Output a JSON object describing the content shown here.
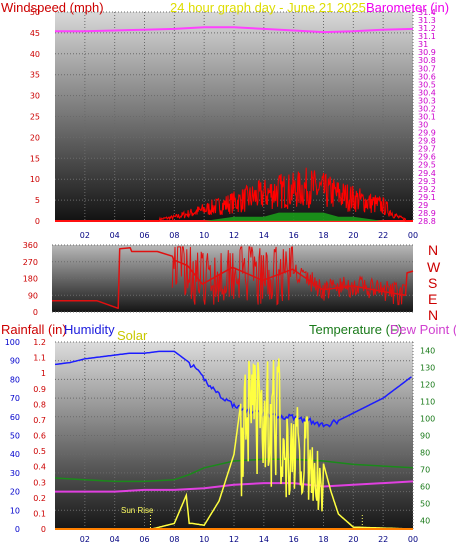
{
  "header": {
    "left_title": "Windspeed (mph)",
    "center_title": "24 hour graph day - June 21 2025",
    "right_title": "Barometer (in)"
  },
  "colors": {
    "wind": "#ff2020",
    "gust": "#ff0000",
    "barometer": "#ff40ff",
    "direction": "#e01010",
    "humidity": "#1c1cff",
    "solar": "#ffff40",
    "temperature": "#1a8a1a",
    "dewpoint": "#e040e0",
    "rain": "#ff8000",
    "bg_top": "#d8d8d8",
    "bg_bottom": "#1a1a1a"
  },
  "chart_data": [
    {
      "type": "line",
      "name": "wind-barometer",
      "x_ticks": [
        "02",
        "04",
        "06",
        "08",
        "10",
        "12",
        "14",
        "16",
        "18",
        "20",
        "22",
        "00"
      ],
      "left_axis": {
        "label": "Windspeed (mph)",
        "ticks": [
          "0",
          "5",
          "10",
          "15",
          "20",
          "25",
          "30",
          "35",
          "40",
          "45",
          "50"
        ],
        "range": [
          0,
          50
        ]
      },
      "right_axis": {
        "label": "Barometer (in)",
        "ticks": [
          "28.8",
          "28.9",
          "29",
          "29.1",
          "29.2",
          "29.3",
          "29.4",
          "29.5",
          "29.6",
          "29.7",
          "29.8",
          "29.9",
          "30",
          "30.1",
          "30.2",
          "30.3",
          "30.4",
          "30.5",
          "30.6",
          "30.7",
          "30.8",
          "30.9",
          "31",
          "31.1",
          "31.2",
          "31.3",
          "31.4"
        ],
        "range": [
          28.8,
          31.4
        ]
      },
      "series": [
        {
          "name": "Barometer",
          "x": [
            0,
            2,
            4,
            6,
            8,
            10,
            12,
            14,
            16,
            18,
            20,
            22,
            24
          ],
          "values": [
            31.16,
            31.16,
            31.17,
            31.18,
            31.19,
            31.21,
            31.21,
            31.19,
            31.17,
            31.15,
            31.16,
            31.18,
            31.19
          ]
        },
        {
          "name": "Wind gust",
          "x": [
            0,
            2,
            4,
            6,
            8,
            9,
            10,
            11,
            12,
            13,
            14,
            15,
            16,
            17,
            18,
            19,
            20,
            21,
            22,
            23,
            24
          ],
          "values": [
            0,
            0,
            0,
            0,
            1,
            2,
            3,
            4,
            5,
            6,
            7,
            8,
            8,
            9,
            8,
            7,
            6,
            5,
            4,
            1,
            0
          ]
        },
        {
          "name": "Wind speed",
          "x": [
            0,
            2,
            4,
            6,
            8,
            10,
            12,
            14,
            15,
            16,
            17,
            18,
            19,
            20,
            22,
            24
          ],
          "values": [
            0,
            0,
            0,
            0,
            0,
            0,
            1,
            1,
            2,
            2,
            2,
            2,
            1,
            1,
            0,
            0
          ]
        }
      ]
    },
    {
      "type": "line",
      "name": "wind-direction",
      "left_axis": {
        "ticks": [
          "0",
          "90",
          "180",
          "270",
          "360"
        ],
        "range": [
          0,
          360
        ]
      },
      "right_labels": [
        "N",
        "W",
        "S",
        "E",
        "N"
      ],
      "series": [
        {
          "name": "Direction",
          "x": [
            0,
            0.5,
            3,
            4.4,
            4.5,
            5.2,
            5.3,
            7,
            8,
            8.1,
            9,
            10,
            12,
            14,
            16,
            18,
            20,
            22,
            23.5,
            23.6,
            24
          ],
          "values": [
            60,
            60,
            60,
            20,
            340,
            345,
            325,
            325,
            300,
            280,
            250,
            150,
            240,
            170,
            230,
            120,
            140,
            110,
            90,
            210,
            220
          ]
        }
      ]
    },
    {
      "type": "line",
      "name": "rain-humidity-solar-temperature",
      "x_ticks": [
        "02",
        "04",
        "06",
        "08",
        "10",
        "12",
        "14",
        "16",
        "18",
        "20",
        "22",
        "00"
      ],
      "left_axis_humidity": {
        "label": "Humidity",
        "ticks": [
          "0",
          "10",
          "20",
          "30",
          "40",
          "50",
          "60",
          "70",
          "80",
          "90",
          "100"
        ],
        "range": [
          0,
          100
        ]
      },
      "left_axis_rain": {
        "label": "Rainfall (in)",
        "ticks": [
          "0",
          "0.1",
          "0.2",
          "0.3",
          "0.4",
          "0.5",
          "0.6",
          "0.7",
          "0.8",
          "0.9",
          "1",
          "1.1",
          "1.2"
        ],
        "range": [
          0,
          1.2
        ]
      },
      "right_axis": {
        "label": "Temperature (F)",
        "ticks": [
          "40",
          "50",
          "60",
          "70",
          "80",
          "90",
          "100",
          "110",
          "120",
          "130",
          "140"
        ],
        "range": [
          35,
          145
        ]
      },
      "labels": {
        "solar": "Solar",
        "dew_point": "Dew Point (F)",
        "sun_rise": "Sun Rise"
      },
      "series": [
        {
          "name": "Humidity",
          "x": [
            0,
            1,
            2,
            3,
            4,
            5,
            6,
            7,
            8,
            9,
            10,
            11,
            12,
            13,
            14,
            15,
            16,
            17,
            18,
            19,
            20,
            21,
            22,
            23,
            24
          ],
          "values": [
            88,
            89,
            91,
            92,
            93,
            94,
            94,
            95,
            95,
            89,
            80,
            72,
            66,
            63,
            61,
            60,
            60,
            58,
            55,
            58,
            62,
            66,
            70,
            76,
            82
          ]
        },
        {
          "name": "Temperature",
          "x": [
            0,
            2,
            4,
            6,
            8,
            9,
            10,
            12,
            14,
            16,
            18,
            20,
            22,
            24
          ],
          "values": [
            65,
            64,
            63,
            63,
            64,
            67,
            71,
            75,
            76,
            76,
            75,
            73,
            72,
            71
          ]
        },
        {
          "name": "Dew Point",
          "x": [
            0,
            2,
            4,
            6,
            8,
            10,
            12,
            14,
            16,
            18,
            20,
            22,
            24
          ],
          "values": [
            57,
            57,
            57,
            58,
            58,
            59,
            61,
            62,
            62,
            60,
            61,
            62,
            63
          ]
        },
        {
          "name": "Solar",
          "x": [
            0,
            6.5,
            7,
            8,
            8.8,
            9,
            9.2,
            10,
            11,
            12,
            12.5,
            13,
            13.5,
            14,
            14.5,
            15,
            15.5,
            16,
            16.5,
            17,
            17.5,
            18,
            18.5,
            19,
            20,
            24
          ],
          "values": [
            0,
            0,
            1,
            3,
            18,
            3,
            3,
            2,
            15,
            40,
            70,
            82,
            80,
            87,
            81,
            86,
            60,
            78,
            50,
            58,
            40,
            35,
            20,
            8,
            1,
            0
          ]
        },
        {
          "name": "Rainfall",
          "x": [
            0,
            24
          ],
          "values": [
            0,
            0
          ]
        }
      ]
    }
  ]
}
